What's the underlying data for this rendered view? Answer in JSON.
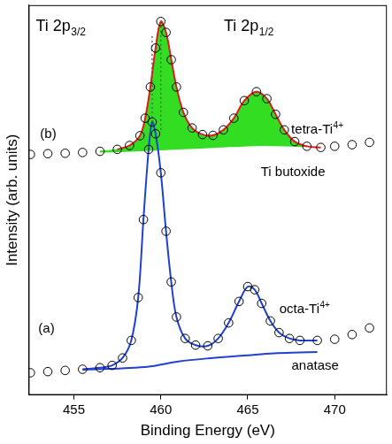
{
  "chart_data": {
    "type": "line",
    "x_label": "Binding Energy (eV)",
    "y_label": "Intensity (arb. units)",
    "xlim": [
      452.4,
      473
    ],
    "xticks": [
      455,
      460,
      465,
      470
    ],
    "ylim": [
      0,
      100
    ],
    "tick_labels": "x",
    "grid": false,
    "annotations": [
      {
        "text": "Ti 2p",
        "sub": "3/2"
      },
      {
        "text": "Ti 2p",
        "sub": "1/2"
      },
      {
        "text": "tetra-Ti",
        "sup": "4+"
      },
      {
        "text": "(b)"
      },
      {
        "text": "Ti butoxide"
      },
      {
        "text": "octa-Ti",
        "sup": "4+"
      },
      {
        "text": "(a)"
      },
      {
        "text": "anatase"
      }
    ],
    "series": [
      {
        "type": "area",
        "color": "#33dd22",
        "x": [
          456.5,
          457.5,
          458.2,
          458.8,
          459.1,
          459.4,
          459.7,
          460.0,
          460.3,
          460.6,
          460.9,
          461.3,
          461.8,
          462.4,
          463.0,
          463.6,
          464.2,
          464.8,
          465.5,
          466.1,
          466.6,
          467.1,
          467.7,
          468.4
        ],
        "values": [
          62.5,
          63.0,
          64.0,
          66.5,
          71.0,
          79.0,
          89.0,
          95.8,
          93.0,
          86.0,
          79.0,
          72.5,
          68.5,
          66.8,
          66.6,
          68.0,
          71.0,
          75.5,
          77.8,
          76.0,
          72.0,
          68.0,
          65.0,
          63.8
        ]
      },
      {
        "type": "line",
        "color": "#33dd22",
        "x": [
          456.5,
          458.0,
          460.0,
          462.0,
          464.0,
          466.0,
          468.4
        ],
        "values": [
          62.4,
          62.6,
          63.0,
          63.4,
          63.8,
          64.1,
          63.8
        ]
      },
      {
        "type": "line",
        "color": "#2040d0",
        "x": [
          455.5,
          457.0,
          458.5,
          459.5,
          461.0,
          463.0,
          465.0,
          466.5,
          468.0,
          469.0
        ],
        "values": [
          6.5,
          6.7,
          7.0,
          7.4,
          8.6,
          9.5,
          10.2,
          10.7,
          10.9,
          11.0
        ]
      },
      {
        "type": "line",
        "color": "#2040d0",
        "x": [
          455.5,
          456.5,
          457.2,
          457.8,
          458.3,
          458.7,
          459.0,
          459.3,
          459.5,
          459.7,
          460.0,
          460.3,
          460.6,
          460.9,
          461.4,
          462.0,
          462.7,
          463.3,
          463.9,
          464.5,
          465.0,
          465.4,
          465.8,
          466.3,
          466.8,
          467.4,
          468.0,
          469.0
        ],
        "values": [
          6.6,
          7.0,
          7.6,
          9.5,
          14.0,
          25.0,
          45.0,
          63.0,
          70.0,
          67.0,
          57.0,
          42.0,
          29.0,
          20.0,
          14.5,
          12.8,
          12.6,
          14.5,
          18.5,
          24.0,
          27.8,
          27.0,
          23.5,
          19.0,
          16.0,
          14.5,
          14.0,
          14.0
        ]
      },
      {
        "type": "line",
        "color": "#e31a1c",
        "x": [
          457.5,
          458.2,
          458.8,
          459.1,
          459.4,
          459.7,
          460.0,
          460.3,
          460.6,
          460.9,
          461.3,
          461.8,
          462.4,
          463.0,
          463.6,
          464.2,
          464.8,
          465.5,
          466.1,
          466.6,
          467.1,
          467.7,
          468.4,
          469.2
        ],
        "values": [
          63.0,
          64.0,
          66.5,
          71.0,
          79.0,
          89.0,
          95.8,
          93.0,
          86.0,
          79.0,
          72.5,
          68.5,
          66.8,
          66.6,
          68.0,
          71.0,
          75.5,
          77.8,
          76.0,
          72.0,
          68.0,
          65.0,
          63.8,
          63.5
        ]
      },
      {
        "type": "line",
        "color": "#555555",
        "line_style": "dotted",
        "x": [
          459.5,
          459.5
        ],
        "values": [
          70.0,
          92.0
        ]
      },
      {
        "type": "line",
        "color": "#555555",
        "line_style": "dotted",
        "x": [
          460.0,
          460.0
        ],
        "values": [
          68.0,
          95.8
        ]
      },
      {
        "type": "scatter",
        "color": "#000000",
        "marker": "circle",
        "x": [
          452.5,
          453.5,
          454.5,
          455.5,
          456.5,
          457.2,
          457.8,
          458.3,
          458.7,
          459.0,
          459.3,
          459.5,
          459.7,
          460.0,
          460.3,
          460.6,
          460.9,
          461.4,
          462.0,
          462.7,
          463.3,
          463.9,
          464.5,
          465.0,
          465.4,
          465.8,
          466.3,
          466.8,
          467.4,
          468.0,
          469.0,
          470.0,
          471.0,
          472.0
        ],
        "values": [
          5.7,
          6.0,
          6.3,
          6.6,
          7.0,
          7.6,
          9.5,
          14.0,
          25.0,
          45.0,
          63.0,
          70.0,
          67.0,
          57.0,
          42.0,
          29.0,
          20.0,
          14.5,
          12.8,
          12.6,
          14.5,
          18.5,
          24.0,
          27.8,
          27.0,
          23.5,
          19.0,
          16.0,
          14.5,
          14.0,
          14.0,
          14.3,
          15.5,
          17.2
        ]
      },
      {
        "type": "scatter",
        "color": "#000000",
        "marker": "circle",
        "x": [
          452.5,
          453.5,
          454.5,
          455.5,
          456.5,
          457.5,
          458.2,
          458.8,
          459.1,
          459.4,
          459.7,
          460.0,
          460.3,
          460.6,
          460.9,
          461.3,
          461.8,
          462.4,
          463.0,
          463.6,
          464.2,
          464.8,
          465.5,
          466.1,
          466.6,
          467.1,
          467.7,
          468.4,
          469.2,
          470.0,
          471.0,
          472.0
        ],
        "values": [
          61.7,
          61.9,
          62.0,
          62.2,
          62.5,
          63.0,
          64.0,
          66.5,
          71.0,
          79.0,
          89.0,
          95.8,
          93.0,
          86.0,
          79.0,
          72.5,
          68.5,
          66.8,
          66.6,
          68.0,
          71.0,
          75.5,
          77.8,
          76.0,
          72.0,
          68.0,
          65.0,
          63.8,
          63.5,
          63.8,
          64.2,
          64.8
        ]
      }
    ]
  }
}
